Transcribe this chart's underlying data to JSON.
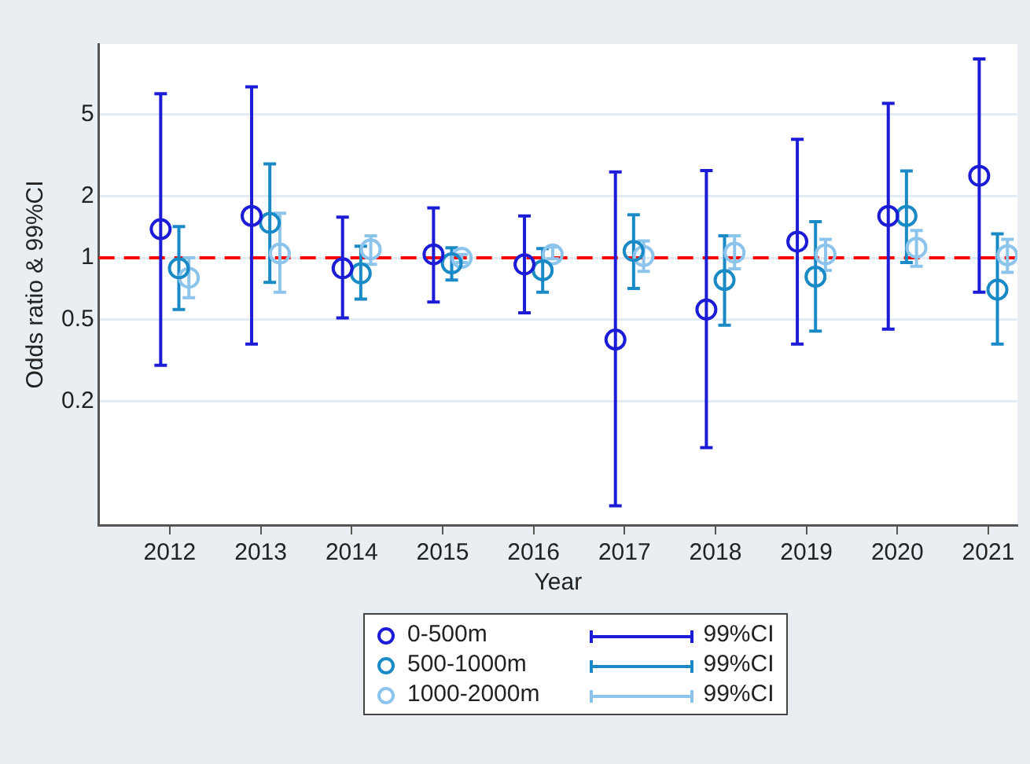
{
  "chart_data": {
    "type": "scatter",
    "xlabel": "Year",
    "ylabel": "Odds ratio & 99%CI",
    "categories": [
      "2012",
      "2013",
      "2014",
      "2015",
      "2016",
      "2017",
      "2018",
      "2019",
      "2020",
      "2021"
    ],
    "series": [
      {
        "name": "0-500m",
        "color": "#1c1cd6",
        "values": [
          1.38,
          1.6,
          0.89,
          1.04,
          0.93,
          0.4,
          0.56,
          1.2,
          1.6,
          2.51
        ],
        "errors": [
          [
            0.3,
            6.3
          ],
          [
            0.38,
            6.8
          ],
          [
            0.51,
            1.58
          ],
          [
            0.61,
            1.75
          ],
          [
            0.54,
            1.6
          ],
          [
            0.062,
            2.62
          ],
          [
            0.119,
            2.66
          ],
          [
            0.38,
            3.78
          ],
          [
            0.45,
            5.65
          ],
          [
            0.68,
            9.3
          ]
        ]
      },
      {
        "name": "500-1000m",
        "color": "#1a8ac6",
        "values": [
          0.89,
          1.48,
          0.84,
          0.94,
          0.87,
          1.08,
          0.78,
          0.81,
          1.6,
          0.7
        ],
        "errors": [
          [
            0.56,
            1.42
          ],
          [
            0.76,
            2.87
          ],
          [
            0.63,
            1.14
          ],
          [
            0.78,
            1.12
          ],
          [
            0.68,
            1.11
          ],
          [
            0.71,
            1.62
          ],
          [
            0.47,
            1.28
          ],
          [
            0.44,
            1.5
          ],
          [
            0.95,
            2.65
          ],
          [
            0.38,
            1.31
          ]
        ]
      },
      {
        "name": "1000-2000m",
        "color": "#8cc4ec",
        "values": [
          0.8,
          1.05,
          1.1,
          1.0,
          1.04,
          1.02,
          1.06,
          1.04,
          1.12,
          1.03
        ],
        "errors": [
          [
            0.64,
            1.0
          ],
          [
            0.68,
            1.65
          ],
          [
            0.93,
            1.28
          ],
          [
            0.95,
            1.04
          ],
          [
            0.99,
            1.13
          ],
          [
            0.86,
            1.21
          ],
          [
            0.885,
            1.28
          ],
          [
            0.87,
            1.23
          ],
          [
            0.91,
            1.36
          ],
          [
            0.85,
            1.23
          ]
        ]
      }
    ],
    "log": "y",
    "ylim": [
      0.05,
      11
    ],
    "yticks": [
      0.2,
      0.5,
      1,
      2,
      5
    ],
    "grid": "y",
    "marker": "circle",
    "legend": "bottom",
    "ref_lines": [
      {
        "axis": "y",
        "value": 1,
        "color": "#ff0000",
        "line_style": "dashed"
      }
    ],
    "annotations": [
      "99%CI",
      "99%CI",
      "99%CI"
    ]
  }
}
